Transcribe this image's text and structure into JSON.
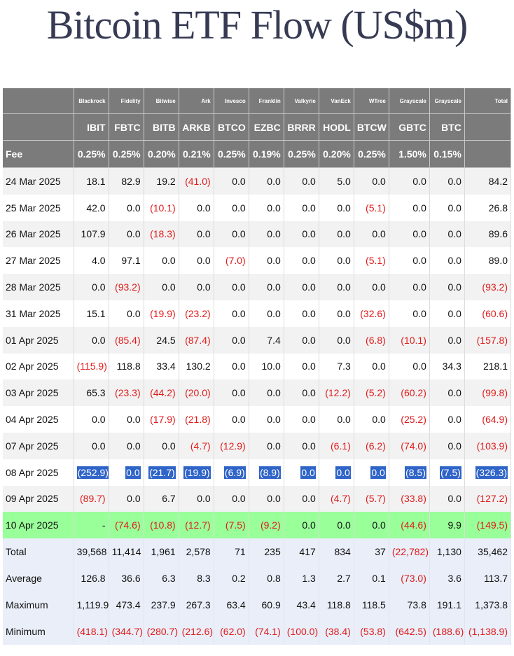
{
  "title": "Bitcoin ETF Flow (US$m)",
  "highlight_color": "#2f64c8",
  "green_row_color": "#99ff99",
  "negative_color": "#e01b1b",
  "issuers": [
    "Blackrock",
    "Fidelity",
    "Bitwise",
    "Ark",
    "Invesco",
    "Franklin",
    "Valkyrie",
    "VanEck",
    "WTree",
    "Grayscale",
    "Grayscale"
  ],
  "total_header": "Total",
  "tickers": [
    "IBIT",
    "FBTC",
    "BITB",
    "ARKB",
    "BTCO",
    "EZBC",
    "BRRR",
    "HODL",
    "BTCW",
    "GBTC",
    "BTC"
  ],
  "fee_label": "Fee",
  "fees": [
    "0.25%",
    "0.25%",
    "0.20%",
    "0.21%",
    "0.25%",
    "0.19%",
    "0.25%",
    "0.20%",
    "0.25%",
    "1.50%",
    "0.15%"
  ],
  "rows": [
    {
      "date": "24 Mar 2025",
      "values": [
        "18.1",
        "82.9",
        "19.2",
        "(41.0)",
        "0.0",
        "0.0",
        "0.0",
        "5.0",
        "0.0",
        "0.0",
        "0.0"
      ],
      "total": "84.2"
    },
    {
      "date": "25 Mar 2025",
      "values": [
        "42.0",
        "0.0",
        "(10.1)",
        "0.0",
        "0.0",
        "0.0",
        "0.0",
        "0.0",
        "(5.1)",
        "0.0",
        "0.0"
      ],
      "total": "26.8"
    },
    {
      "date": "26 Mar 2025",
      "values": [
        "107.9",
        "0.0",
        "(18.3)",
        "0.0",
        "0.0",
        "0.0",
        "0.0",
        "0.0",
        "0.0",
        "0.0",
        "0.0"
      ],
      "total": "89.6"
    },
    {
      "date": "27 Mar 2025",
      "values": [
        "4.0",
        "97.1",
        "0.0",
        "0.0",
        "(7.0)",
        "0.0",
        "0.0",
        "0.0",
        "(5.1)",
        "0.0",
        "0.0"
      ],
      "total": "89.0"
    },
    {
      "date": "28 Mar 2025",
      "values": [
        "0.0",
        "(93.2)",
        "0.0",
        "0.0",
        "0.0",
        "0.0",
        "0.0",
        "0.0",
        "0.0",
        "0.0",
        "0.0"
      ],
      "total": "(93.2)"
    },
    {
      "date": "31 Mar 2025",
      "values": [
        "15.1",
        "0.0",
        "(19.9)",
        "(23.2)",
        "0.0",
        "0.0",
        "0.0",
        "0.0",
        "(32.6)",
        "0.0",
        "0.0"
      ],
      "total": "(60.6)"
    },
    {
      "date": "01 Apr 2025",
      "values": [
        "0.0",
        "(85.4)",
        "24.5",
        "(87.4)",
        "0.0",
        "7.4",
        "0.0",
        "0.0",
        "(6.8)",
        "(10.1)",
        "0.0"
      ],
      "total": "(157.8)"
    },
    {
      "date": "02 Apr 2025",
      "values": [
        "(115.9)",
        "118.8",
        "33.4",
        "130.2",
        "0.0",
        "10.0",
        "0.0",
        "7.3",
        "0.0",
        "0.0",
        "34.3"
      ],
      "total": "218.1"
    },
    {
      "date": "03 Apr 2025",
      "values": [
        "65.3",
        "(23.3)",
        "(44.2)",
        "(20.0)",
        "0.0",
        "0.0",
        "0.0",
        "(12.2)",
        "(5.2)",
        "(60.2)",
        "0.0"
      ],
      "total": "(99.8)"
    },
    {
      "date": "04 Apr 2025",
      "values": [
        "0.0",
        "0.0",
        "(17.9)",
        "(21.8)",
        "0.0",
        "0.0",
        "0.0",
        "0.0",
        "0.0",
        "(25.2)",
        "0.0"
      ],
      "total": "(64.9)"
    },
    {
      "date": "07 Apr 2025",
      "values": [
        "0.0",
        "0.0",
        "0.0",
        "(4.7)",
        "(12.9)",
        "0.0",
        "0.0",
        "(6.1)",
        "(6.2)",
        "(74.0)",
        "0.0"
      ],
      "total": "(103.9)"
    },
    {
      "date": "08 Apr 2025",
      "values": [
        "(252.9)",
        "0.0",
        "(21.7)",
        "(19.9)",
        "(6.9)",
        "(8.9)",
        "0.0",
        "0.0",
        "0.0",
        "(8.5)",
        "(7.5)"
      ],
      "total": "(326.3)",
      "highlight": true
    },
    {
      "date": "09 Apr 2025",
      "values": [
        "(89.7)",
        "0.0",
        "6.7",
        "0.0",
        "0.0",
        "0.0",
        "0.0",
        "(4.7)",
        "(5.7)",
        "(33.8)",
        "0.0"
      ],
      "total": "(127.2)"
    },
    {
      "date": "10 Apr 2025",
      "values": [
        "-",
        "(74.6)",
        "(10.8)",
        "(12.7)",
        "(7.5)",
        "(9.2)",
        "0.0",
        "0.0",
        "0.0",
        "(44.6)",
        "9.9"
      ],
      "total": "(149.5)",
      "green": true
    }
  ],
  "summary": [
    {
      "label": "Total",
      "values": [
        "39,568",
        "11,414",
        "1,961",
        "2,578",
        "71",
        "235",
        "417",
        "834",
        "37",
        "(22,782)",
        "1,130"
      ],
      "total": "35,462"
    },
    {
      "label": "Average",
      "values": [
        "126.8",
        "36.6",
        "6.3",
        "8.3",
        "0.2",
        "0.8",
        "1.3",
        "2.7",
        "0.1",
        "(73.0)",
        "3.6"
      ],
      "total": "113.7"
    },
    {
      "label": "Maximum",
      "values": [
        "1,119.9",
        "473.4",
        "237.9",
        "267.3",
        "63.4",
        "60.9",
        "43.4",
        "118.8",
        "118.5",
        "73.8",
        "191.1"
      ],
      "total": "1,373.8"
    },
    {
      "label": "Minimum",
      "values": [
        "(418.1)",
        "(344.7)",
        "(280.7)",
        "(212.6)",
        "(62.0)",
        "(74.1)",
        "(100.0)",
        "(38.4)",
        "(53.8)",
        "(642.5)",
        "(188.6)"
      ],
      "total": "(1,138.9)"
    }
  ]
}
